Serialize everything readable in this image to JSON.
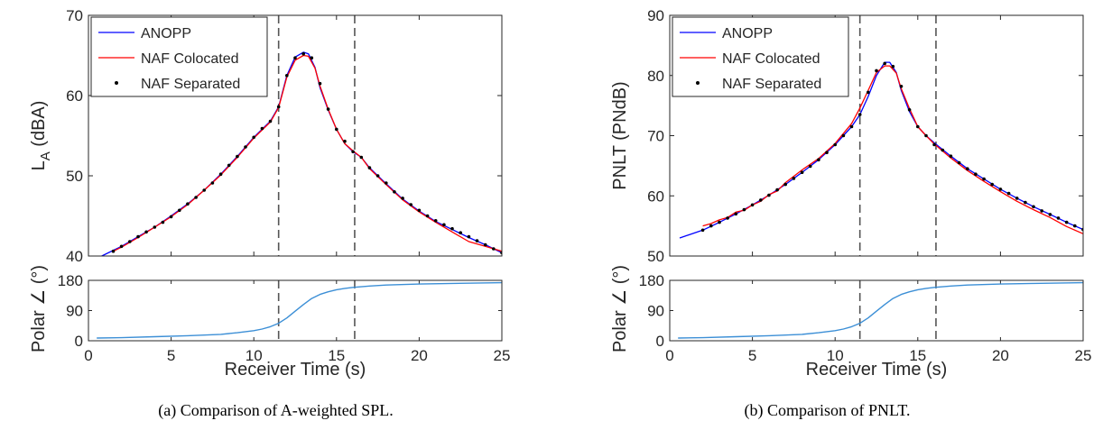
{
  "chart_data": [
    {
      "panel": "a",
      "type": "line",
      "caption": "(a) Comparison of A-weighted SPL.",
      "ylabel_main": "L",
      "ylabel_sub": "A",
      "ylabel_unit": " (dBA)",
      "xlabel": "Receiver Time (s)",
      "xlim": [
        0,
        25
      ],
      "ylim": [
        40,
        70
      ],
      "xticks": [
        0,
        5,
        10,
        15,
        20,
        25
      ],
      "yticks": [
        40,
        50,
        60,
        70
      ],
      "vlines": [
        11.5,
        16.1
      ],
      "legend_position": "top-left",
      "series": [
        {
          "name": "ANOPP",
          "color": "#0000ff",
          "style": "line",
          "x": [
            0.8,
            2,
            3,
            4,
            5,
            6,
            7,
            8,
            9,
            10,
            11,
            11.5,
            12,
            12.5,
            13,
            13.3,
            13.7,
            14,
            14.5,
            15,
            15.5,
            16,
            16.5,
            17,
            18,
            19,
            20,
            21,
            22,
            23,
            24,
            25
          ],
          "y": [
            40,
            41.2,
            42.4,
            43.6,
            45,
            46.5,
            48.2,
            50.2,
            52.4,
            54.8,
            56.8,
            58.6,
            62.5,
            64.8,
            65.4,
            65.2,
            63.5,
            61,
            58.2,
            55.8,
            54,
            53,
            52.3,
            51,
            49,
            47.1,
            45.6,
            44.3,
            43.3,
            42.3,
            41.4,
            40.4
          ]
        },
        {
          "name": "NAF Colocated",
          "color": "#ff0000",
          "style": "line",
          "x": [
            1.5,
            2,
            3,
            4,
            5,
            6,
            7,
            8,
            9,
            10,
            11,
            11.5,
            12,
            12.5,
            13,
            13.3,
            13.7,
            14,
            14.5,
            15,
            15.5,
            16,
            16.5,
            17,
            18,
            19,
            20,
            21,
            22,
            23,
            24,
            25
          ],
          "y": [
            40.6,
            41.1,
            42.3,
            43.6,
            44.9,
            46.4,
            48.2,
            50.1,
            52.3,
            54.7,
            56.7,
            58.5,
            62.3,
            64.4,
            65,
            64.9,
            63.4,
            61.2,
            58.3,
            55.8,
            54,
            53.1,
            52.3,
            50.9,
            48.9,
            47,
            45.5,
            44.2,
            43,
            41.8,
            41.2,
            40.6
          ]
        },
        {
          "name": "NAF Separated",
          "color": "#000000",
          "style": "markers",
          "x": [
            1.5,
            2,
            2.5,
            3,
            3.5,
            4,
            4.5,
            5,
            5.5,
            6,
            6.5,
            7,
            7.5,
            8,
            8.5,
            9,
            9.5,
            10,
            10.5,
            11,
            11.5,
            12,
            12.5,
            13,
            13.5,
            14,
            14.5,
            15,
            15.5,
            16,
            16.5,
            17,
            17.5,
            18,
            18.5,
            19,
            19.5,
            20,
            20.5,
            21,
            21.5,
            22,
            22.5,
            23,
            23.5,
            24,
            24.5,
            25
          ],
          "y": [
            40.6,
            41.2,
            41.8,
            42.4,
            43,
            43.6,
            44.2,
            44.9,
            45.7,
            46.5,
            47.3,
            48.2,
            49.1,
            50.2,
            51.3,
            52.4,
            53.6,
            54.8,
            55.9,
            56.8,
            58.6,
            62.5,
            64.7,
            65.2,
            64.7,
            61.5,
            58.3,
            55.8,
            54.3,
            53,
            52.3,
            51,
            50,
            49.1,
            48,
            47.2,
            46.4,
            45.7,
            45,
            44.4,
            43.9,
            43.4,
            42.9,
            42.4,
            41.9,
            41.4,
            40.9,
            40.4
          ]
        }
      ],
      "polar": {
        "ylabel": "Polar ∠ (°)",
        "ylim": [
          0,
          180
        ],
        "yticks": [
          0,
          90,
          180
        ],
        "color": "#3c8fd6",
        "x": [
          0.5,
          2,
          4,
          6,
          8,
          9,
          10,
          10.5,
          11,
          11.5,
          12,
          12.5,
          13,
          13.5,
          14,
          14.5,
          15,
          15.5,
          16,
          17,
          18,
          20,
          22,
          25
        ],
        "y": [
          8,
          9,
          12,
          15,
          19,
          24,
          30,
          35,
          42,
          52,
          68,
          88,
          108,
          126,
          138,
          146,
          152,
          156,
          159,
          163,
          166,
          169,
          171,
          173
        ]
      }
    },
    {
      "panel": "b",
      "type": "line",
      "caption": "(b) Comparison of PNLT.",
      "ylabel_main": "PNLT (PNdB)",
      "ylabel_sub": "",
      "ylabel_unit": "",
      "xlabel": "Receiver Time (s)",
      "xlim": [
        0,
        25
      ],
      "ylim": [
        50,
        90
      ],
      "xticks": [
        0,
        5,
        10,
        15,
        20,
        25
      ],
      "yticks": [
        50,
        60,
        70,
        80,
        90
      ],
      "vlines": [
        11.5,
        16.1
      ],
      "legend_position": "top-left",
      "series": [
        {
          "name": "ANOPP",
          "color": "#0000ff",
          "style": "line",
          "x": [
            0.6,
            2,
            3,
            4,
            5,
            6,
            7,
            8,
            9,
            10,
            11,
            11.5,
            12,
            12.5,
            13,
            13.3,
            13.7,
            14,
            14.5,
            15,
            15.5,
            16,
            17,
            18,
            19,
            20,
            21,
            22,
            23,
            24,
            25
          ],
          "y": [
            53,
            54.3,
            55.6,
            57,
            58.5,
            60.1,
            61.9,
            63.9,
            66,
            68.5,
            71.5,
            73.5,
            76.5,
            80,
            82.2,
            82.2,
            80.5,
            77.5,
            74,
            71.5,
            70,
            68.8,
            66.6,
            64.5,
            62.8,
            61.1,
            59.6,
            58.2,
            56.9,
            55.6,
            54.4
          ]
        },
        {
          "name": "NAF Colocated",
          "color": "#ff0000",
          "style": "line",
          "x": [
            2,
            2.5,
            3,
            3.5,
            4,
            4.5,
            5,
            5.5,
            6,
            6.5,
            7,
            8,
            9,
            10,
            11,
            11.5,
            12,
            12.5,
            13,
            13.3,
            13.7,
            14,
            14.5,
            15,
            15.5,
            16,
            17,
            18,
            19,
            20,
            21,
            22,
            23,
            24,
            25
          ],
          "y": [
            55,
            55.4,
            56,
            56.4,
            57.3,
            57.6,
            58.5,
            59.1,
            60.2,
            60.8,
            62.2,
            64.3,
            66.2,
            68.7,
            72,
            74.6,
            77.5,
            80.5,
            81.6,
            81.6,
            80.4,
            77.8,
            74.5,
            71.5,
            70,
            68.6,
            66.3,
            64.2,
            62.4,
            60.7,
            59.1,
            57.7,
            56.4,
            54.9,
            53.7
          ]
        },
        {
          "name": "NAF Separated",
          "color": "#000000",
          "style": "markers",
          "x": [
            2,
            2.5,
            3,
            3.5,
            4,
            4.5,
            5,
            5.5,
            6,
            6.5,
            7,
            7.5,
            8,
            8.5,
            9,
            9.5,
            10,
            10.5,
            11,
            11.5,
            12,
            12.5,
            13,
            13.5,
            14,
            14.5,
            15,
            15.5,
            16,
            16.5,
            17,
            17.5,
            18,
            18.5,
            19,
            19.5,
            20,
            20.5,
            21,
            21.5,
            22,
            22.5,
            23,
            23.5,
            24,
            24.5,
            25
          ],
          "y": [
            54.3,
            55,
            55.6,
            56.3,
            57,
            57.7,
            58.5,
            59.3,
            60.1,
            61,
            61.9,
            62.9,
            63.9,
            64.9,
            66,
            67.2,
            68.5,
            70,
            71.5,
            73.5,
            77.2,
            80.8,
            82,
            81.5,
            78.2,
            74.3,
            71.5,
            70,
            68.5,
            67.6,
            66.6,
            65.5,
            64.5,
            63.6,
            62.8,
            61.9,
            61.1,
            60.4,
            59.6,
            58.9,
            58.2,
            57.5,
            56.9,
            56.3,
            55.6,
            55,
            54.4
          ]
        }
      ],
      "polar": {
        "ylabel": "Polar ∠ (°)",
        "ylim": [
          0,
          180
        ],
        "yticks": [
          0,
          90,
          180
        ],
        "color": "#3c8fd6",
        "x": [
          0.5,
          2,
          4,
          6,
          8,
          9,
          10,
          10.5,
          11,
          11.5,
          12,
          12.5,
          13,
          13.5,
          14,
          14.5,
          15,
          15.5,
          16,
          17,
          18,
          20,
          22,
          25
        ],
        "y": [
          8,
          9,
          12,
          15,
          19,
          24,
          30,
          35,
          42,
          52,
          68,
          88,
          108,
          126,
          138,
          146,
          152,
          156,
          159,
          163,
          166,
          169,
          171,
          173
        ]
      }
    }
  ]
}
